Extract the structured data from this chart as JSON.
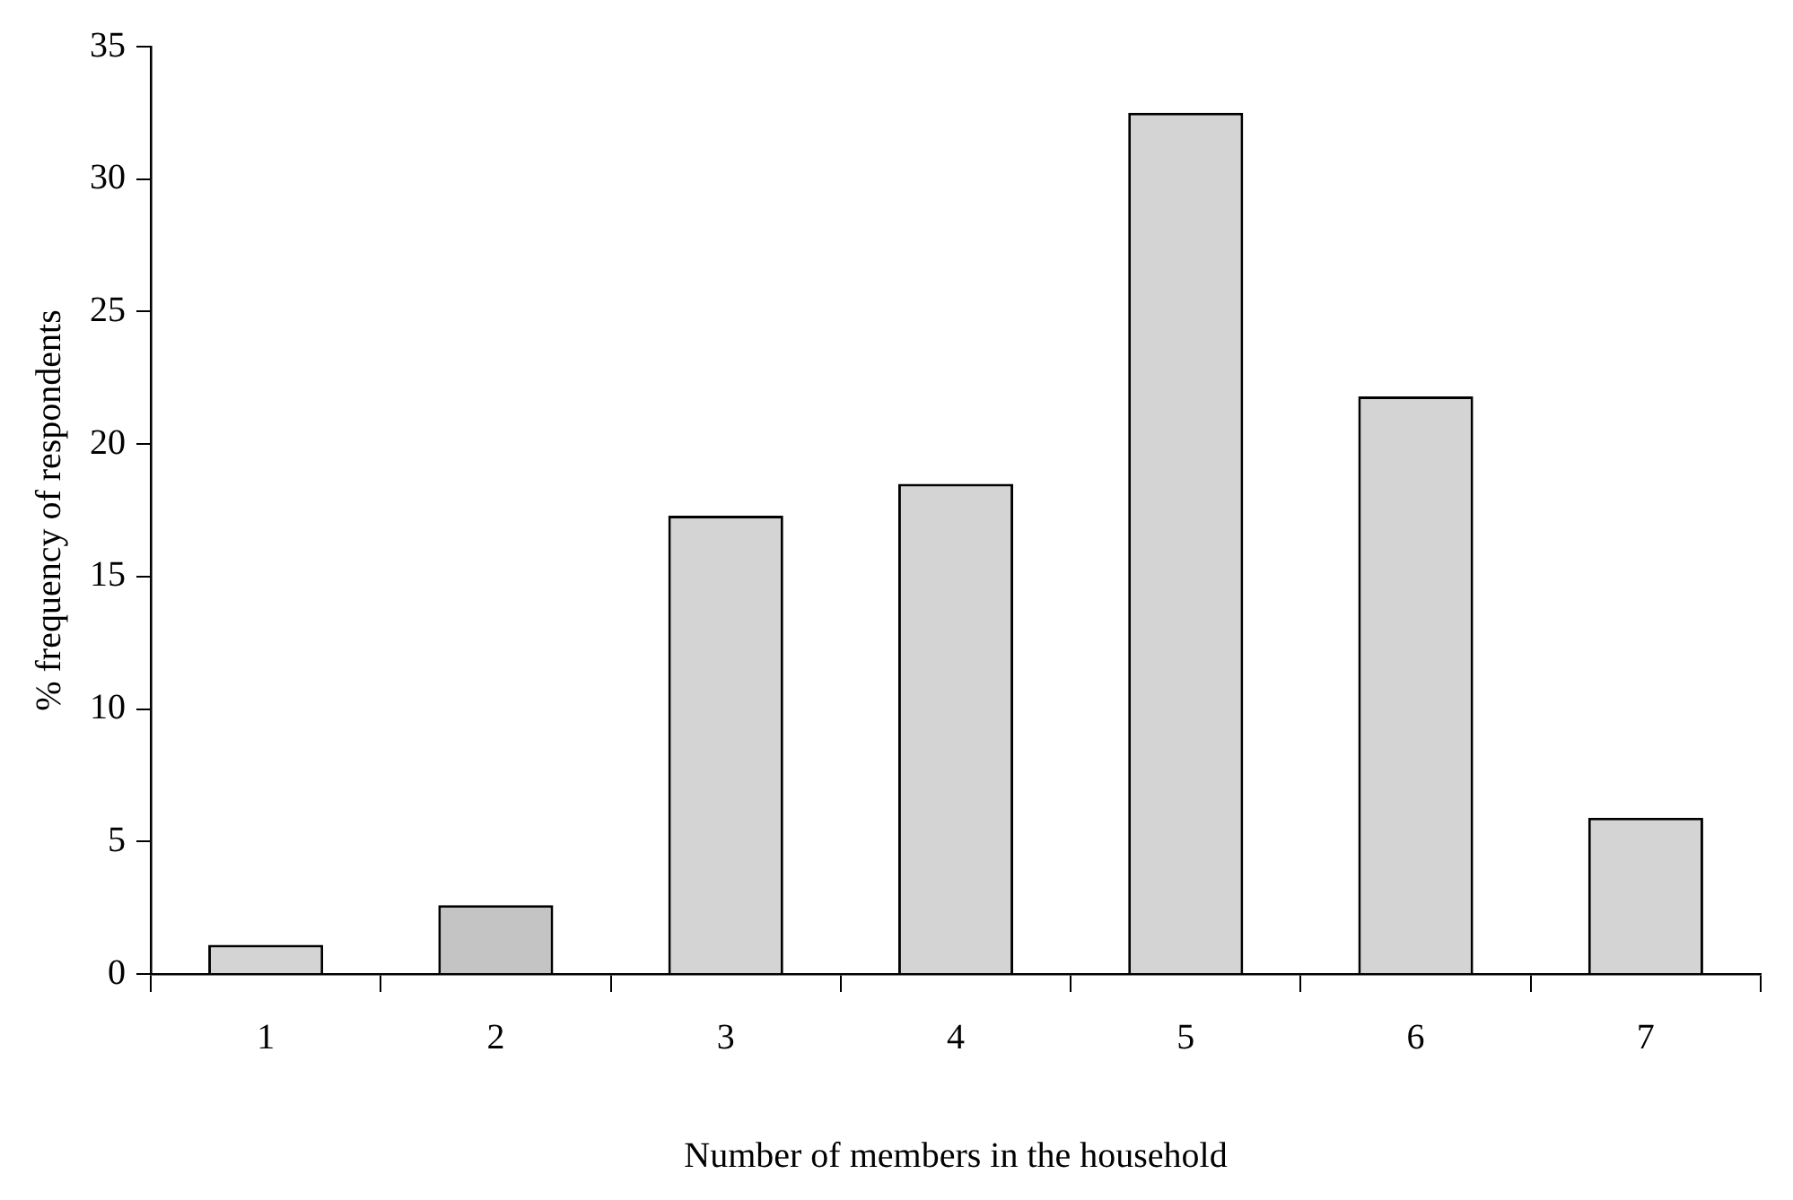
{
  "chart_data": {
    "type": "bar",
    "xlabel": "Number of members in the household",
    "ylabel": "% frequency of respondents",
    "categories": [
      "1",
      "2",
      "3",
      "4",
      "5",
      "6",
      "7"
    ],
    "values": [
      1.1,
      2.6,
      17.3,
      18.5,
      32.5,
      21.8,
      5.9
    ],
    "colors": [
      "#d4d4d4",
      "#c4c4c4",
      "#d4d4d4",
      "#d4d4d4",
      "#d4d4d4",
      "#d4d4d4",
      "#d4d4d4"
    ],
    "ylim": [
      0,
      35
    ],
    "yticks": [
      0,
      5,
      10,
      15,
      20,
      25,
      30,
      35
    ],
    "grid": false,
    "legend": false
  }
}
